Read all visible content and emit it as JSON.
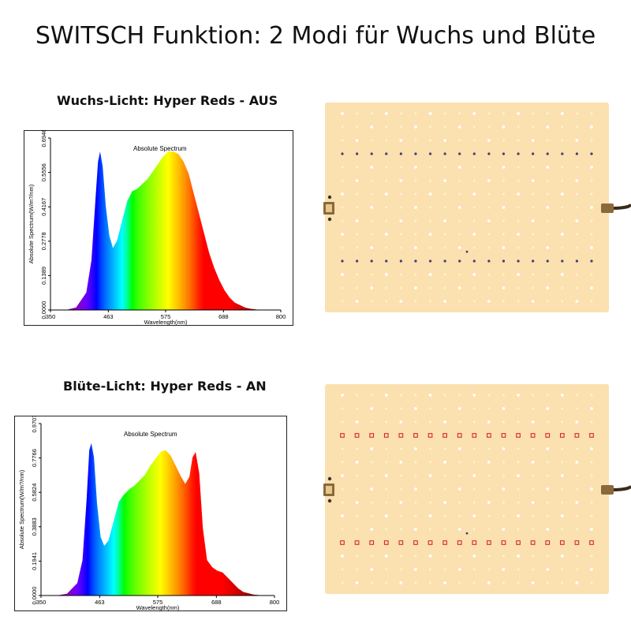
{
  "title": "SWITSCH Funktion: 2 Modi für Wuchs und Blüte",
  "sections": [
    {
      "heading": "Wuchs-Licht: Hyper Reds - AUS"
    },
    {
      "heading": "Blüte-Licht: Hyper Reds - AN"
    }
  ],
  "colors": {
    "board": "#fbe0b0",
    "led_white": "#ffffff",
    "led_warm": "#fff3c4",
    "led_blue": "#3b3f72",
    "led_red": "#d8262e",
    "connector": "#8a6a3a",
    "cable": "#3a2a18"
  },
  "icons": [
    "plug-icon",
    "cable-icon",
    "led-board-icon"
  ],
  "chart_data": [
    {
      "type": "area",
      "title": "Absolute Spectrum",
      "xlabel": "Wavelength(nm)",
      "ylabel": "Absolute Spectrum(W/m?/nm)",
      "xlim": [
        350,
        800
      ],
      "ylim": [
        0,
        0.6946
      ],
      "x_ticks": [
        "350",
        "463",
        "575",
        "688",
        "800"
      ],
      "y_ticks": [
        "0.0000",
        "0.1389",
        "0.2778",
        "0.4167",
        "0.5556",
        "0.6946"
      ],
      "fill": "wavelength-rainbow",
      "x": [
        380,
        400,
        420,
        430,
        438,
        443,
        447,
        452,
        458,
        465,
        472,
        480,
        490,
        500,
        510,
        520,
        530,
        540,
        550,
        560,
        570,
        580,
        590,
        600,
        610,
        620,
        630,
        640,
        650,
        660,
        670,
        680,
        690,
        700,
        710,
        720,
        730,
        740,
        760,
        780
      ],
      "y": [
        0.0,
        0.01,
        0.07,
        0.2,
        0.45,
        0.6,
        0.64,
        0.58,
        0.42,
        0.3,
        0.25,
        0.28,
        0.36,
        0.44,
        0.48,
        0.49,
        0.51,
        0.53,
        0.56,
        0.59,
        0.62,
        0.64,
        0.64,
        0.63,
        0.6,
        0.55,
        0.47,
        0.39,
        0.31,
        0.23,
        0.17,
        0.12,
        0.08,
        0.05,
        0.03,
        0.02,
        0.01,
        0.005,
        0.0,
        0.0
      ]
    },
    {
      "type": "area",
      "title": "Absolute Spectrum",
      "xlabel": "Wavelength(nm)",
      "ylabel": "Absolute Spectrum(W/m?/nm)",
      "xlim": [
        350,
        800
      ],
      "ylim": [
        0,
        0.9707
      ],
      "x_ticks": [
        "350",
        "463",
        "575",
        "688",
        "800"
      ],
      "y_ticks": [
        "0.0000",
        "0.1941",
        "0.3883",
        "0.5824",
        "0.7766",
        "0.9707"
      ],
      "fill": "wavelength-rainbow",
      "x": [
        380,
        400,
        420,
        430,
        438,
        443,
        447,
        452,
        458,
        465,
        472,
        480,
        490,
        500,
        510,
        520,
        530,
        540,
        550,
        560,
        570,
        580,
        590,
        600,
        610,
        620,
        628,
        636,
        642,
        648,
        655,
        662,
        670,
        680,
        690,
        700,
        710,
        720,
        730,
        740,
        760,
        780
      ],
      "y": [
        0.0,
        0.01,
        0.07,
        0.2,
        0.55,
        0.82,
        0.86,
        0.78,
        0.52,
        0.33,
        0.28,
        0.31,
        0.42,
        0.53,
        0.57,
        0.6,
        0.62,
        0.65,
        0.68,
        0.73,
        0.77,
        0.81,
        0.82,
        0.79,
        0.73,
        0.67,
        0.63,
        0.67,
        0.78,
        0.81,
        0.69,
        0.38,
        0.2,
        0.16,
        0.14,
        0.13,
        0.1,
        0.07,
        0.04,
        0.02,
        0.005,
        0.0
      ]
    }
  ]
}
